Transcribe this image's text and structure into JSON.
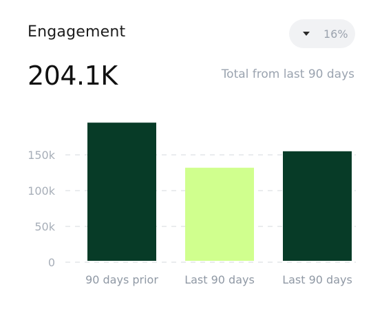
{
  "card": {
    "title": "Engagement",
    "change_percent": "16%",
    "total_value": "204.1K",
    "subtitle": "Total from last 90 days"
  },
  "colors": {
    "dark_green": "#073b27",
    "lime": "#d0ff8e",
    "gridline": "#e3e5e8",
    "tick_text": "#a7aeb8"
  },
  "icons": {
    "change_indicator": "triangle-down-icon"
  },
  "chart_data": {
    "type": "bar",
    "categories": [
      "90 days prior",
      "Last 90 days",
      "Last 90 days"
    ],
    "values": [
      195,
      132,
      155
    ],
    "bar_colors": [
      "#073b27",
      "#d0ff8e",
      "#073b27"
    ],
    "yticks": [
      0,
      50,
      100,
      150
    ],
    "ytick_labels": [
      "0",
      "50k",
      "100k",
      "150k"
    ],
    "ylim": [
      0,
      200
    ],
    "grid": true,
    "title": "",
    "xlabel": "",
    "ylabel": ""
  }
}
